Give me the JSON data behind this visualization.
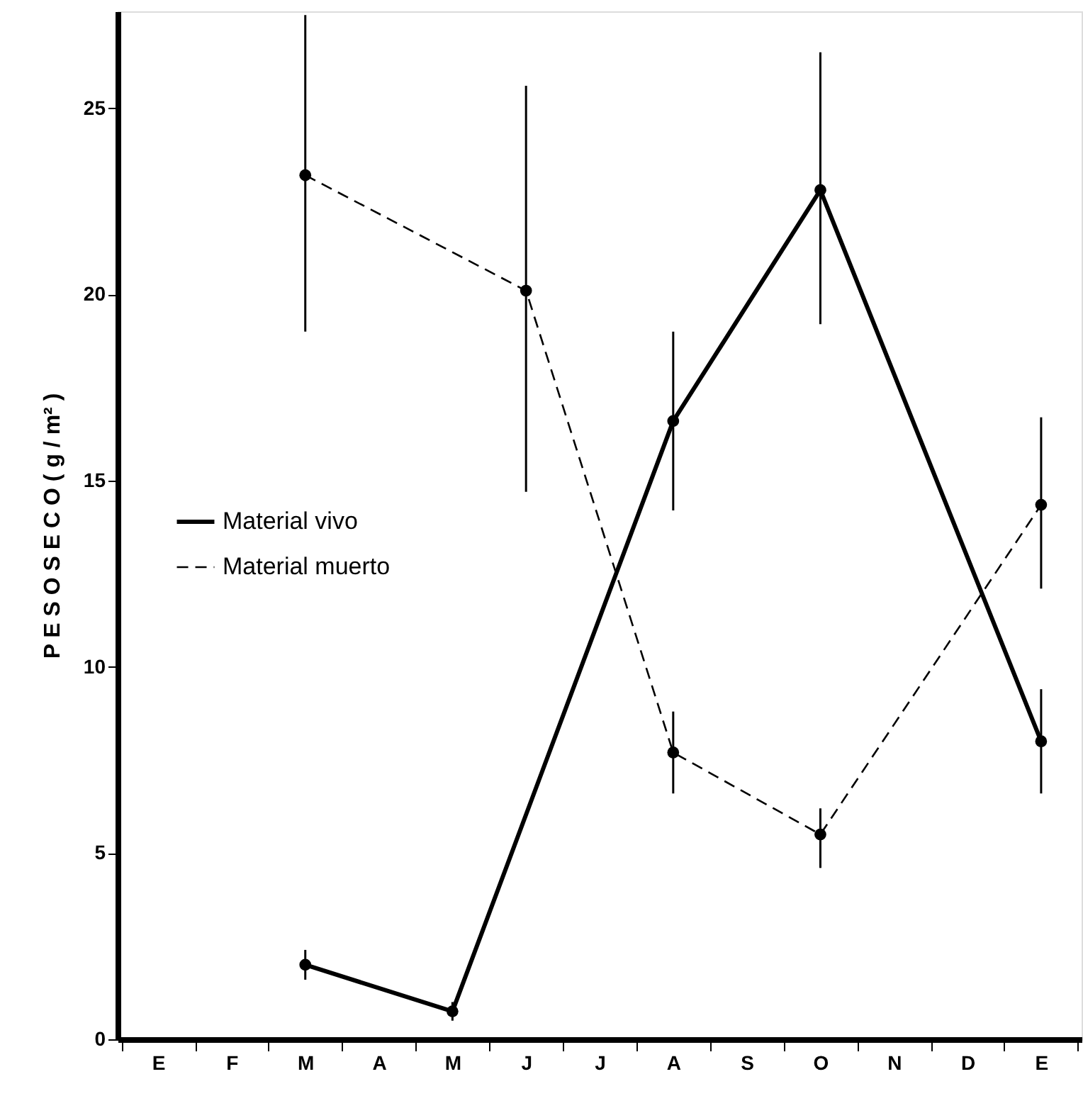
{
  "chart_data": {
    "type": "line",
    "ylabel": "P E S O   S E C O   ( g / m² )",
    "categories": [
      "E",
      "F",
      "M",
      "A",
      "M",
      "J",
      "J",
      "A",
      "S",
      "O",
      "N",
      "D",
      "E"
    ],
    "ylim": [
      0,
      27.6
    ],
    "yticks": [
      0,
      5,
      10,
      15,
      20,
      25
    ],
    "grid": false,
    "legend": "left",
    "marker": "circle",
    "series": [
      {
        "name": "Material vivo",
        "color": "#000000",
        "line_style": "solid",
        "values": [
          null,
          null,
          2.0,
          null,
          0.75,
          null,
          null,
          16.6,
          null,
          22.8,
          null,
          null,
          8.0
        ],
        "errors": [
          null,
          null,
          [
            1.6,
            2.4
          ],
          null,
          [
            0.5,
            1.0
          ],
          null,
          null,
          [
            14.2,
            19.0
          ],
          null,
          [
            19.2,
            26.5
          ],
          null,
          null,
          [
            6.6,
            9.4
          ]
        ]
      },
      {
        "name": "Material muerto",
        "color": "#000000",
        "line_style": "dashed",
        "values": [
          null,
          null,
          23.2,
          null,
          null,
          20.1,
          null,
          7.7,
          null,
          5.5,
          null,
          null,
          14.35
        ],
        "errors": [
          null,
          null,
          [
            19.0,
            27.5
          ],
          null,
          null,
          [
            14.7,
            25.6
          ],
          null,
          [
            6.6,
            8.8
          ],
          null,
          [
            4.6,
            6.2
          ],
          null,
          null,
          [
            12.1,
            16.7
          ]
        ]
      }
    ]
  }
}
